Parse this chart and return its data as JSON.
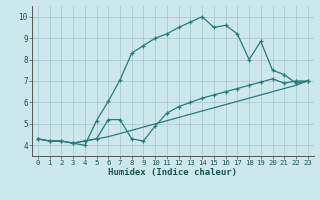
{
  "xlabel": "Humidex (Indice chaleur)",
  "background_color": "#cce8eb",
  "grid_color": "#aaccd0",
  "line_color": "#2a7b7b",
  "xlim": [
    -0.5,
    23.5
  ],
  "ylim": [
    3.5,
    10.5
  ],
  "yticks": [
    4,
    5,
    6,
    7,
    8,
    9,
    10
  ],
  "xticks": [
    0,
    1,
    2,
    3,
    4,
    5,
    6,
    7,
    8,
    9,
    10,
    11,
    12,
    13,
    14,
    15,
    16,
    17,
    18,
    19,
    20,
    21,
    22,
    23
  ],
  "line1_x": [
    0,
    1,
    2,
    3,
    4,
    5,
    6,
    7,
    8,
    9,
    10,
    11,
    12,
    13,
    14,
    15,
    16,
    17,
    18,
    19,
    20,
    21,
    22,
    23
  ],
  "line1_y": [
    4.3,
    4.2,
    4.2,
    4.1,
    4.0,
    5.15,
    6.05,
    7.05,
    8.3,
    8.65,
    9.0,
    9.2,
    9.5,
    9.75,
    10.0,
    9.5,
    9.6,
    9.2,
    8.0,
    8.85,
    7.5,
    7.3,
    6.9,
    7.0
  ],
  "line2_x": [
    0,
    1,
    2,
    3,
    4,
    5,
    6,
    7,
    8,
    9,
    10,
    11,
    12,
    13,
    14,
    15,
    16,
    17,
    18,
    19,
    20,
    21,
    22,
    23
  ],
  "line2_y": [
    4.3,
    4.2,
    4.2,
    4.1,
    4.2,
    4.3,
    5.2,
    5.2,
    4.3,
    4.2,
    4.9,
    5.5,
    5.8,
    6.0,
    6.2,
    6.35,
    6.5,
    6.65,
    6.8,
    6.95,
    7.1,
    6.9,
    7.0,
    7.0
  ],
  "line3_x": [
    0,
    1,
    2,
    3,
    4,
    5,
    6,
    7,
    8,
    9,
    10,
    11,
    12,
    13,
    14,
    15,
    16,
    17,
    18,
    19,
    20,
    21,
    22,
    23
  ],
  "line3_y": [
    4.3,
    4.2,
    4.2,
    4.1,
    4.2,
    4.3,
    4.4,
    4.55,
    4.7,
    4.85,
    5.0,
    5.15,
    5.3,
    5.45,
    5.6,
    5.75,
    5.9,
    6.05,
    6.2,
    6.35,
    6.5,
    6.65,
    6.8,
    7.0
  ]
}
